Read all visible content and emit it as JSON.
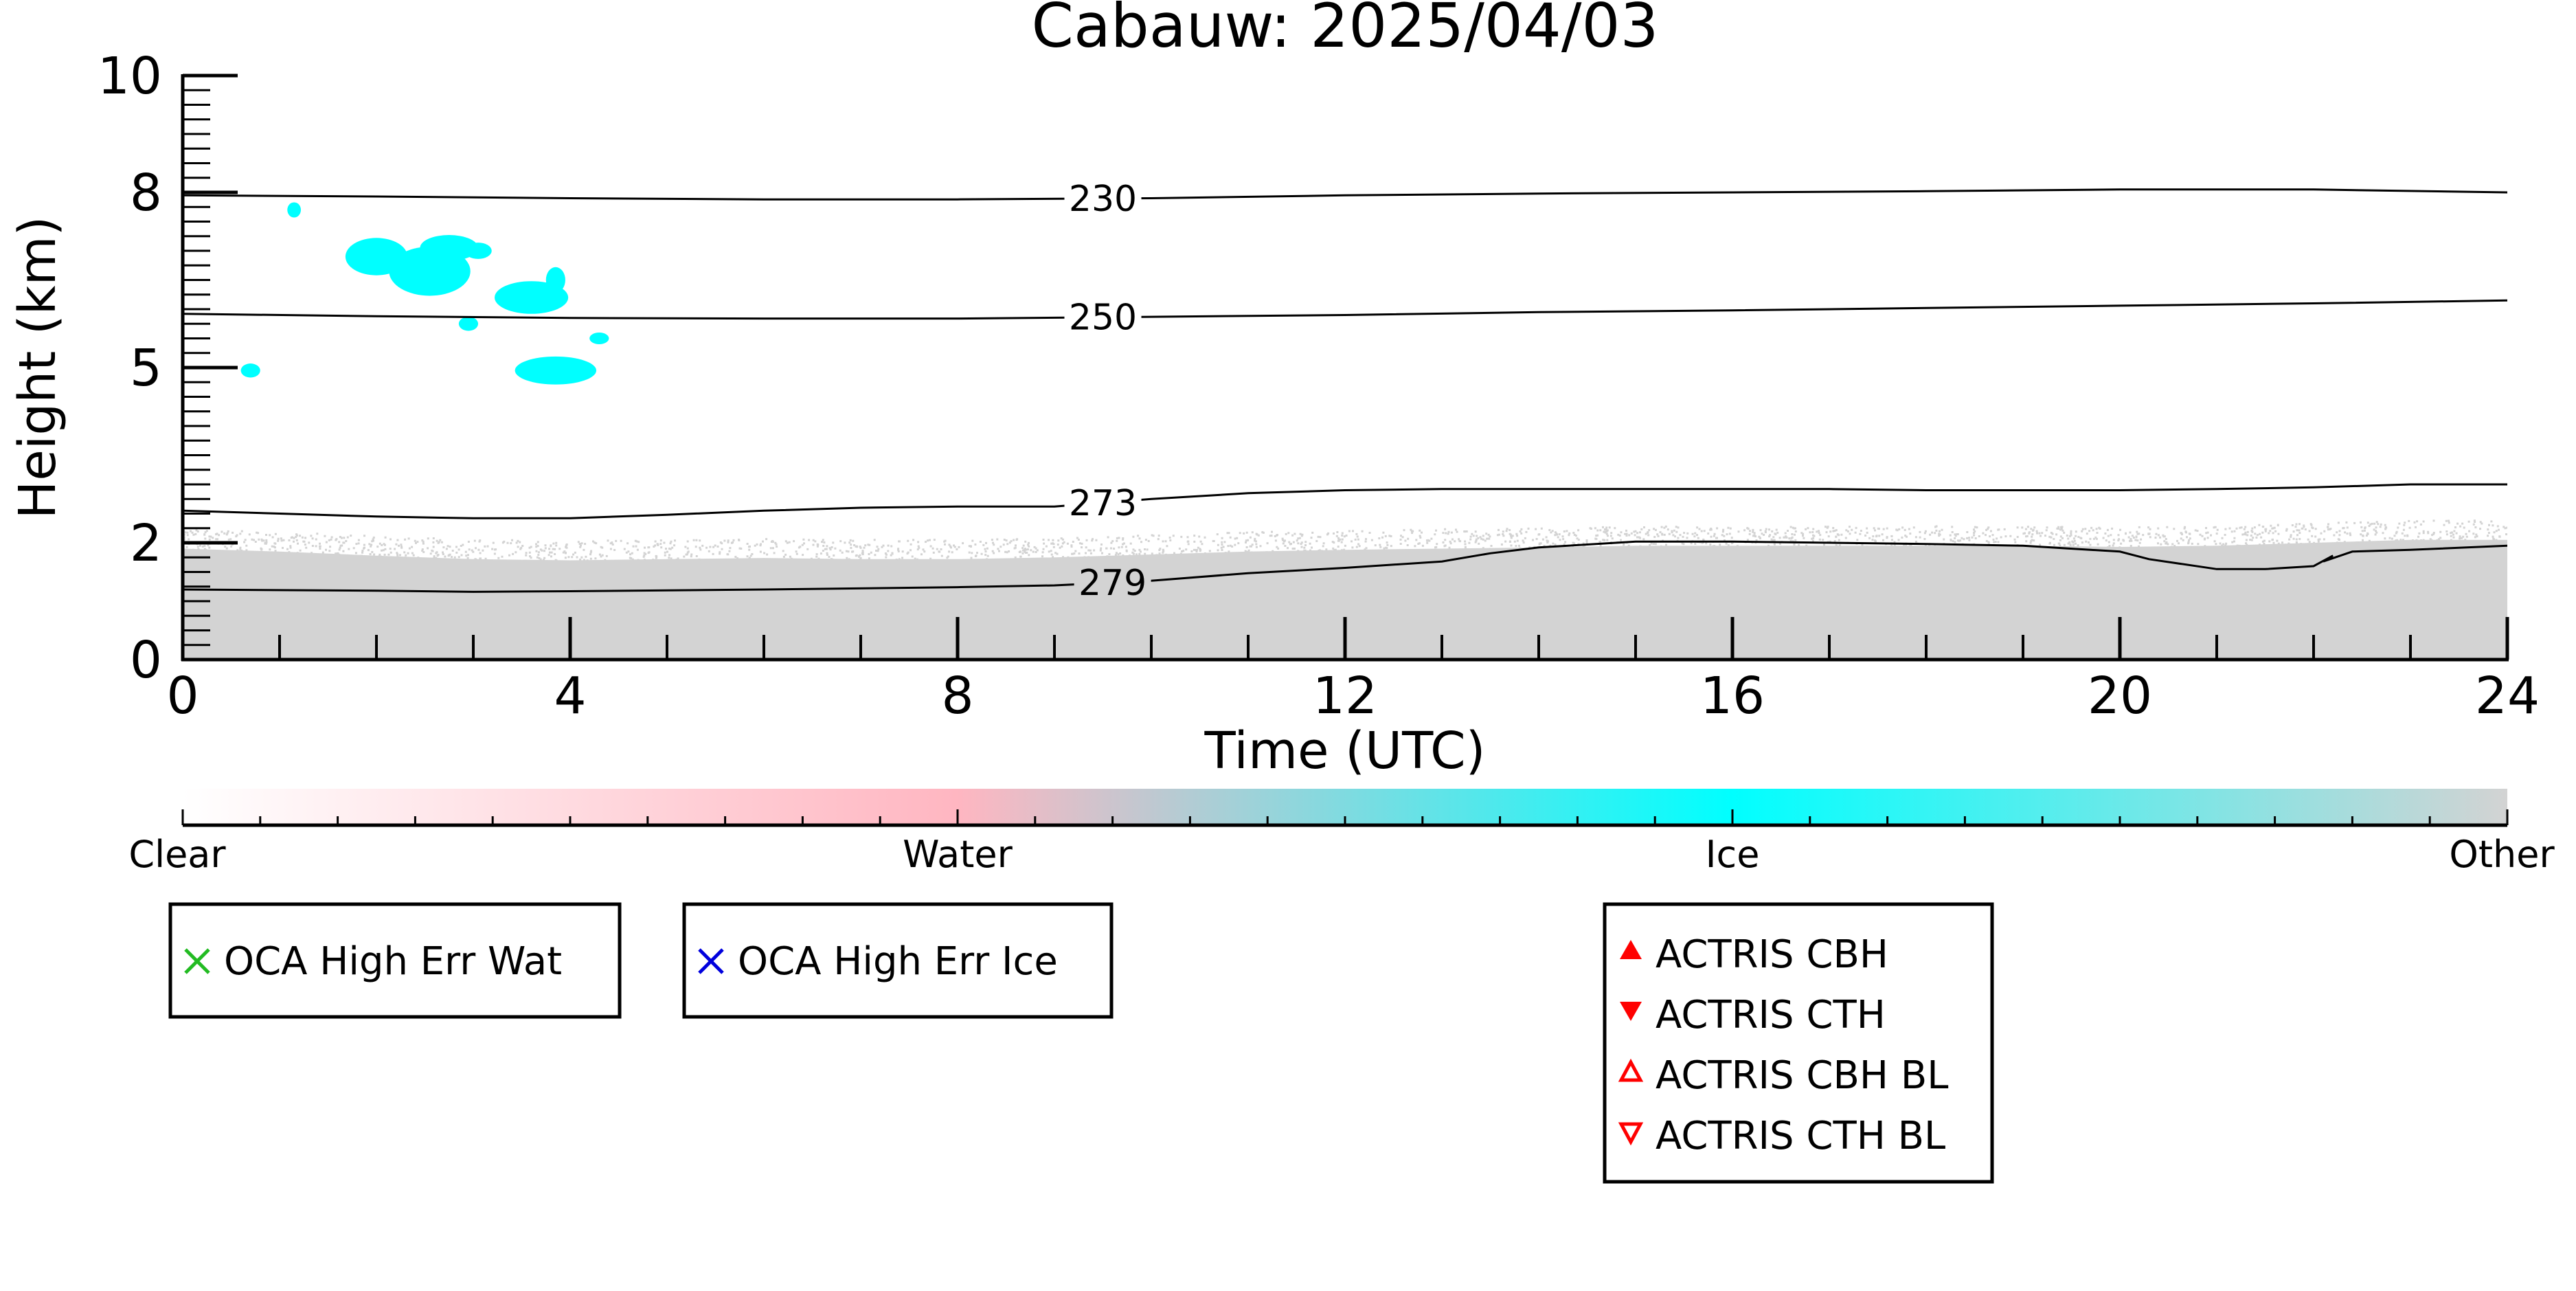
{
  "chart_data": {
    "type": "heatmap",
    "title": "Cabauw: 2025/04/03",
    "xlabel": "Time (UTC)",
    "ylabel": "Height (km)",
    "xlim": [
      0,
      24
    ],
    "ylim": [
      0,
      10
    ],
    "x_ticks": [
      0,
      4,
      8,
      12,
      16,
      20,
      24
    ],
    "y_ticks": [
      0,
      2,
      5,
      8,
      10
    ],
    "x_tick_labels": [
      "0",
      "4",
      "8",
      "12",
      "16",
      "20",
      "24"
    ],
    "y_tick_labels": [
      "0",
      "2",
      "5",
      "8",
      "10"
    ],
    "colors": {
      "clear": "#ffffff",
      "water": "#ffb6c1",
      "ice": "#00ffff",
      "other": "#d3d3d3",
      "contour": "#000000",
      "oca_wat": "#22bb22",
      "oca_ice": "#0000dd",
      "actris": "#ff0000"
    },
    "categories_legend": {
      "labels": [
        "Clear",
        "Water",
        "Ice",
        "Other"
      ]
    },
    "other_top": {
      "x": [
        0,
        1,
        2,
        3,
        4,
        5,
        6,
        7,
        8,
        9,
        10,
        11,
        12,
        13,
        14,
        15,
        16,
        17,
        18,
        19,
        20,
        21,
        22,
        23,
        24
      ],
      "y": [
        1.9,
        1.85,
        1.78,
        1.72,
        1.7,
        1.72,
        1.74,
        1.72,
        1.72,
        1.75,
        1.8,
        1.85,
        1.88,
        1.9,
        1.92,
        1.95,
        1.95,
        1.95,
        1.95,
        1.95,
        1.93,
        1.95,
        2.0,
        2.05,
        2.05
      ]
    },
    "isotherms": [
      {
        "label": "230",
        "label_x": 9.5,
        "x": [
          0,
          2,
          4,
          6,
          8,
          10,
          12,
          14,
          16,
          18,
          20,
          22,
          24
        ],
        "y": [
          7.95,
          7.93,
          7.9,
          7.88,
          7.88,
          7.9,
          7.95,
          7.98,
          8.0,
          8.02,
          8.05,
          8.05,
          8.0
        ]
      },
      {
        "label": "250",
        "label_x": 9.5,
        "x": [
          0,
          2,
          4,
          6,
          8,
          10,
          12,
          14,
          16,
          18,
          20,
          22,
          24
        ],
        "y": [
          5.92,
          5.88,
          5.85,
          5.84,
          5.84,
          5.87,
          5.9,
          5.95,
          5.98,
          6.02,
          6.06,
          6.1,
          6.15
        ]
      },
      {
        "label": "273",
        "label_x": 9.5,
        "x": [
          0,
          1,
          2,
          3,
          4,
          5,
          6,
          7,
          8,
          9,
          10,
          11,
          12,
          13,
          14,
          15,
          16,
          17,
          18,
          19,
          20,
          21,
          22,
          23,
          24
        ],
        "y": [
          2.55,
          2.5,
          2.45,
          2.42,
          2.42,
          2.48,
          2.55,
          2.6,
          2.62,
          2.62,
          2.75,
          2.85,
          2.9,
          2.92,
          2.92,
          2.92,
          2.92,
          2.92,
          2.9,
          2.9,
          2.9,
          2.92,
          2.95,
          3.0,
          3.0
        ]
      },
      {
        "label": "279",
        "label_x": 9.6,
        "x": [
          0,
          2,
          3,
          4,
          6,
          8,
          9,
          10,
          11,
          12,
          13,
          13.5,
          14,
          15,
          16,
          18,
          19,
          20,
          20.3,
          21,
          21.5,
          22,
          22.2,
          22.1,
          22.4,
          23,
          24
        ],
        "y": [
          1.2,
          1.18,
          1.16,
          1.17,
          1.2,
          1.24,
          1.27,
          1.35,
          1.48,
          1.57,
          1.68,
          1.82,
          1.92,
          2.02,
          2.02,
          1.98,
          1.95,
          1.85,
          1.72,
          1.55,
          1.55,
          1.6,
          1.78,
          1.68,
          1.85,
          1.88,
          1.95
        ]
      }
    ],
    "ice_clouds": [
      {
        "x": 0.7,
        "y": 4.95,
        "rx": 0.1,
        "ry": 0.12
      },
      {
        "x": 1.15,
        "y": 7.7,
        "rx": 0.07,
        "ry": 0.13
      },
      {
        "x": 2.0,
        "y": 6.9,
        "rx": 0.32,
        "ry": 0.32
      },
      {
        "x": 2.55,
        "y": 6.65,
        "rx": 0.42,
        "ry": 0.42
      },
      {
        "x": 2.75,
        "y": 7.05,
        "rx": 0.3,
        "ry": 0.22
      },
      {
        "x": 3.05,
        "y": 7.0,
        "rx": 0.14,
        "ry": 0.14
      },
      {
        "x": 2.95,
        "y": 5.75,
        "rx": 0.1,
        "ry": 0.12
      },
      {
        "x": 3.6,
        "y": 6.2,
        "rx": 0.38,
        "ry": 0.28
      },
      {
        "x": 3.85,
        "y": 6.5,
        "rx": 0.1,
        "ry": 0.22
      },
      {
        "x": 3.85,
        "y": 4.95,
        "rx": 0.42,
        "ry": 0.24
      },
      {
        "x": 4.3,
        "y": 5.5,
        "rx": 0.1,
        "ry": 0.1
      }
    ],
    "legend_boxes": [
      {
        "marker": "x",
        "color": "#22bb22",
        "label": "OCA High Err Wat"
      },
      {
        "marker": "x",
        "color": "#0000dd",
        "label": "OCA High Err Ice"
      },
      {
        "items": [
          {
            "marker": "triangle-up",
            "color": "#ff0000",
            "label": "ACTRIS CBH"
          },
          {
            "marker": "triangle-down",
            "color": "#ff0000",
            "label": "ACTRIS CTH"
          },
          {
            "marker": "triangle-up-open",
            "color": "#ff0000",
            "label": "ACTRIS CBH BL"
          },
          {
            "marker": "triangle-down-open",
            "color": "#ff0000",
            "label": "ACTRIS CTH BL"
          }
        ]
      }
    ]
  }
}
